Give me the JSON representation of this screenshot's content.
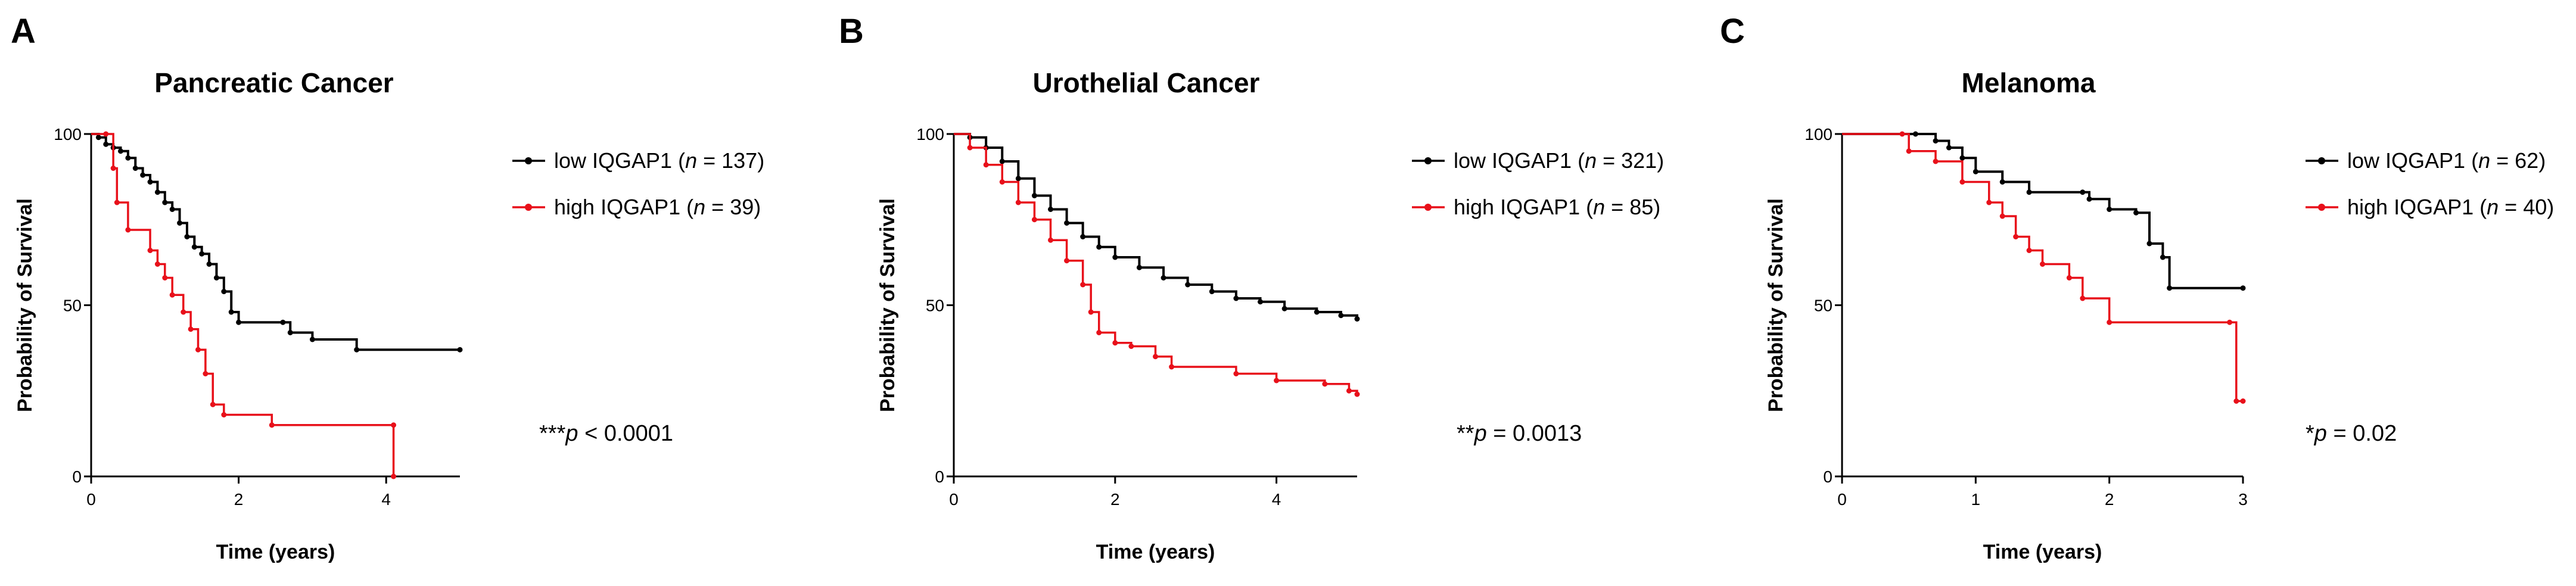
{
  "chart_data": [
    {
      "type": "line",
      "panel_letter": "A",
      "title": "Pancreatic Cancer",
      "xlabel": "Time (years)",
      "ylabel": "Probability of Survival",
      "xlim": [
        0,
        5
      ],
      "ylim": [
        0,
        100
      ],
      "xticks": [
        0,
        2,
        4
      ],
      "yticks": [
        0,
        50,
        100
      ],
      "legend_position": "right",
      "series": [
        {
          "name": "low IQGAP1",
          "n": "137",
          "color": "#000000",
          "points": [
            [
              0,
              100
            ],
            [
              0.1,
              99
            ],
            [
              0.2,
              97
            ],
            [
              0.3,
              96
            ],
            [
              0.4,
              95
            ],
            [
              0.5,
              93
            ],
            [
              0.6,
              90
            ],
            [
              0.7,
              88
            ],
            [
              0.8,
              86
            ],
            [
              0.9,
              83
            ],
            [
              1.0,
              80
            ],
            [
              1.1,
              78
            ],
            [
              1.2,
              74
            ],
            [
              1.3,
              70
            ],
            [
              1.4,
              67
            ],
            [
              1.5,
              65
            ],
            [
              1.6,
              62
            ],
            [
              1.7,
              58
            ],
            [
              1.8,
              54
            ],
            [
              1.9,
              48
            ],
            [
              2.0,
              45
            ],
            [
              2.6,
              45
            ],
            [
              2.7,
              42
            ],
            [
              3.0,
              40
            ],
            [
              3.6,
              37
            ],
            [
              5.0,
              37
            ]
          ]
        },
        {
          "name": "high IQGAP1",
          "n": "39",
          "color": "#e8101a",
          "points": [
            [
              0,
              100
            ],
            [
              0.2,
              100
            ],
            [
              0.3,
              90
            ],
            [
              0.35,
              80
            ],
            [
              0.5,
              72
            ],
            [
              0.8,
              66
            ],
            [
              0.9,
              62
            ],
            [
              1.0,
              58
            ],
            [
              1.1,
              53
            ],
            [
              1.25,
              48
            ],
            [
              1.35,
              43
            ],
            [
              1.45,
              37
            ],
            [
              1.55,
              30
            ],
            [
              1.65,
              21
            ],
            [
              1.8,
              18
            ],
            [
              2.45,
              15
            ],
            [
              4.1,
              15
            ],
            [
              4.1,
              0
            ]
          ]
        }
      ],
      "pvalue": {
        "stars": "***",
        "p": "p",
        "rest": " < 0.0001"
      }
    },
    {
      "type": "line",
      "panel_letter": "B",
      "title": "Urothelial Cancer",
      "xlabel": "Time (years)",
      "ylabel": "Probability of Survival",
      "xlim": [
        0,
        5
      ],
      "ylim": [
        0,
        100
      ],
      "xticks": [
        0,
        2,
        4
      ],
      "yticks": [
        0,
        50,
        100
      ],
      "legend_position": "right",
      "series": [
        {
          "name": "low IQGAP1",
          "n": "321",
          "color": "#000000",
          "points": [
            [
              0,
              100
            ],
            [
              0.2,
              99
            ],
            [
              0.4,
              96
            ],
            [
              0.6,
              92
            ],
            [
              0.8,
              87
            ],
            [
              1.0,
              82
            ],
            [
              1.2,
              78
            ],
            [
              1.4,
              74
            ],
            [
              1.6,
              70
            ],
            [
              1.8,
              67
            ],
            [
              2.0,
              64
            ],
            [
              2.3,
              61
            ],
            [
              2.6,
              58
            ],
            [
              2.9,
              56
            ],
            [
              3.2,
              54
            ],
            [
              3.5,
              52
            ],
            [
              3.8,
              51
            ],
            [
              4.1,
              49
            ],
            [
              4.5,
              48
            ],
            [
              4.8,
              47
            ],
            [
              5.0,
              46
            ]
          ]
        },
        {
          "name": "high IQGAP1",
          "n": "85",
          "color": "#e8101a",
          "points": [
            [
              0,
              100
            ],
            [
              0.2,
              96
            ],
            [
              0.4,
              91
            ],
            [
              0.6,
              86
            ],
            [
              0.8,
              80
            ],
            [
              1.0,
              75
            ],
            [
              1.2,
              69
            ],
            [
              1.4,
              63
            ],
            [
              1.6,
              56
            ],
            [
              1.7,
              48
            ],
            [
              1.8,
              42
            ],
            [
              2.0,
              39
            ],
            [
              2.2,
              38
            ],
            [
              2.5,
              35
            ],
            [
              2.7,
              32
            ],
            [
              3.5,
              30
            ],
            [
              4.0,
              28
            ],
            [
              4.6,
              27
            ],
            [
              4.9,
              25
            ],
            [
              5.0,
              24
            ]
          ]
        }
      ],
      "pvalue": {
        "stars": "**",
        "p": "p",
        "rest": " = 0.0013"
      }
    },
    {
      "type": "line",
      "panel_letter": "C",
      "title": "Melanoma",
      "xlabel": "Time (years)",
      "ylabel": "Probability of Survival",
      "xlim": [
        0,
        3
      ],
      "ylim": [
        0,
        100
      ],
      "xticks": [
        0,
        1,
        2,
        3
      ],
      "yticks": [
        0,
        50,
        100
      ],
      "legend_position": "right",
      "series": [
        {
          "name": "low IQGAP1",
          "n": "62",
          "color": "#000000",
          "points": [
            [
              0,
              100
            ],
            [
              0.55,
              100
            ],
            [
              0.7,
              98
            ],
            [
              0.8,
              96
            ],
            [
              0.9,
              93
            ],
            [
              1.0,
              89
            ],
            [
              1.2,
              86
            ],
            [
              1.4,
              83
            ],
            [
              1.8,
              83
            ],
            [
              1.85,
              81
            ],
            [
              2.0,
              78
            ],
            [
              2.2,
              77
            ],
            [
              2.3,
              68
            ],
            [
              2.4,
              64
            ],
            [
              2.45,
              55
            ],
            [
              3.0,
              55
            ]
          ]
        },
        {
          "name": "high IQGAP1",
          "n": "40",
          "color": "#e8101a",
          "points": [
            [
              0,
              100
            ],
            [
              0.45,
              100
            ],
            [
              0.5,
              95
            ],
            [
              0.7,
              92
            ],
            [
              0.9,
              86
            ],
            [
              1.1,
              80
            ],
            [
              1.2,
              76
            ],
            [
              1.3,
              70
            ],
            [
              1.4,
              66
            ],
            [
              1.5,
              62
            ],
            [
              1.7,
              58
            ],
            [
              1.8,
              52
            ],
            [
              2.0,
              45
            ],
            [
              2.9,
              45
            ],
            [
              2.95,
              22
            ],
            [
              3.0,
              22
            ]
          ]
        }
      ],
      "pvalue": {
        "stars": "*",
        "p": "p",
        "rest": " = 0.02"
      }
    }
  ]
}
